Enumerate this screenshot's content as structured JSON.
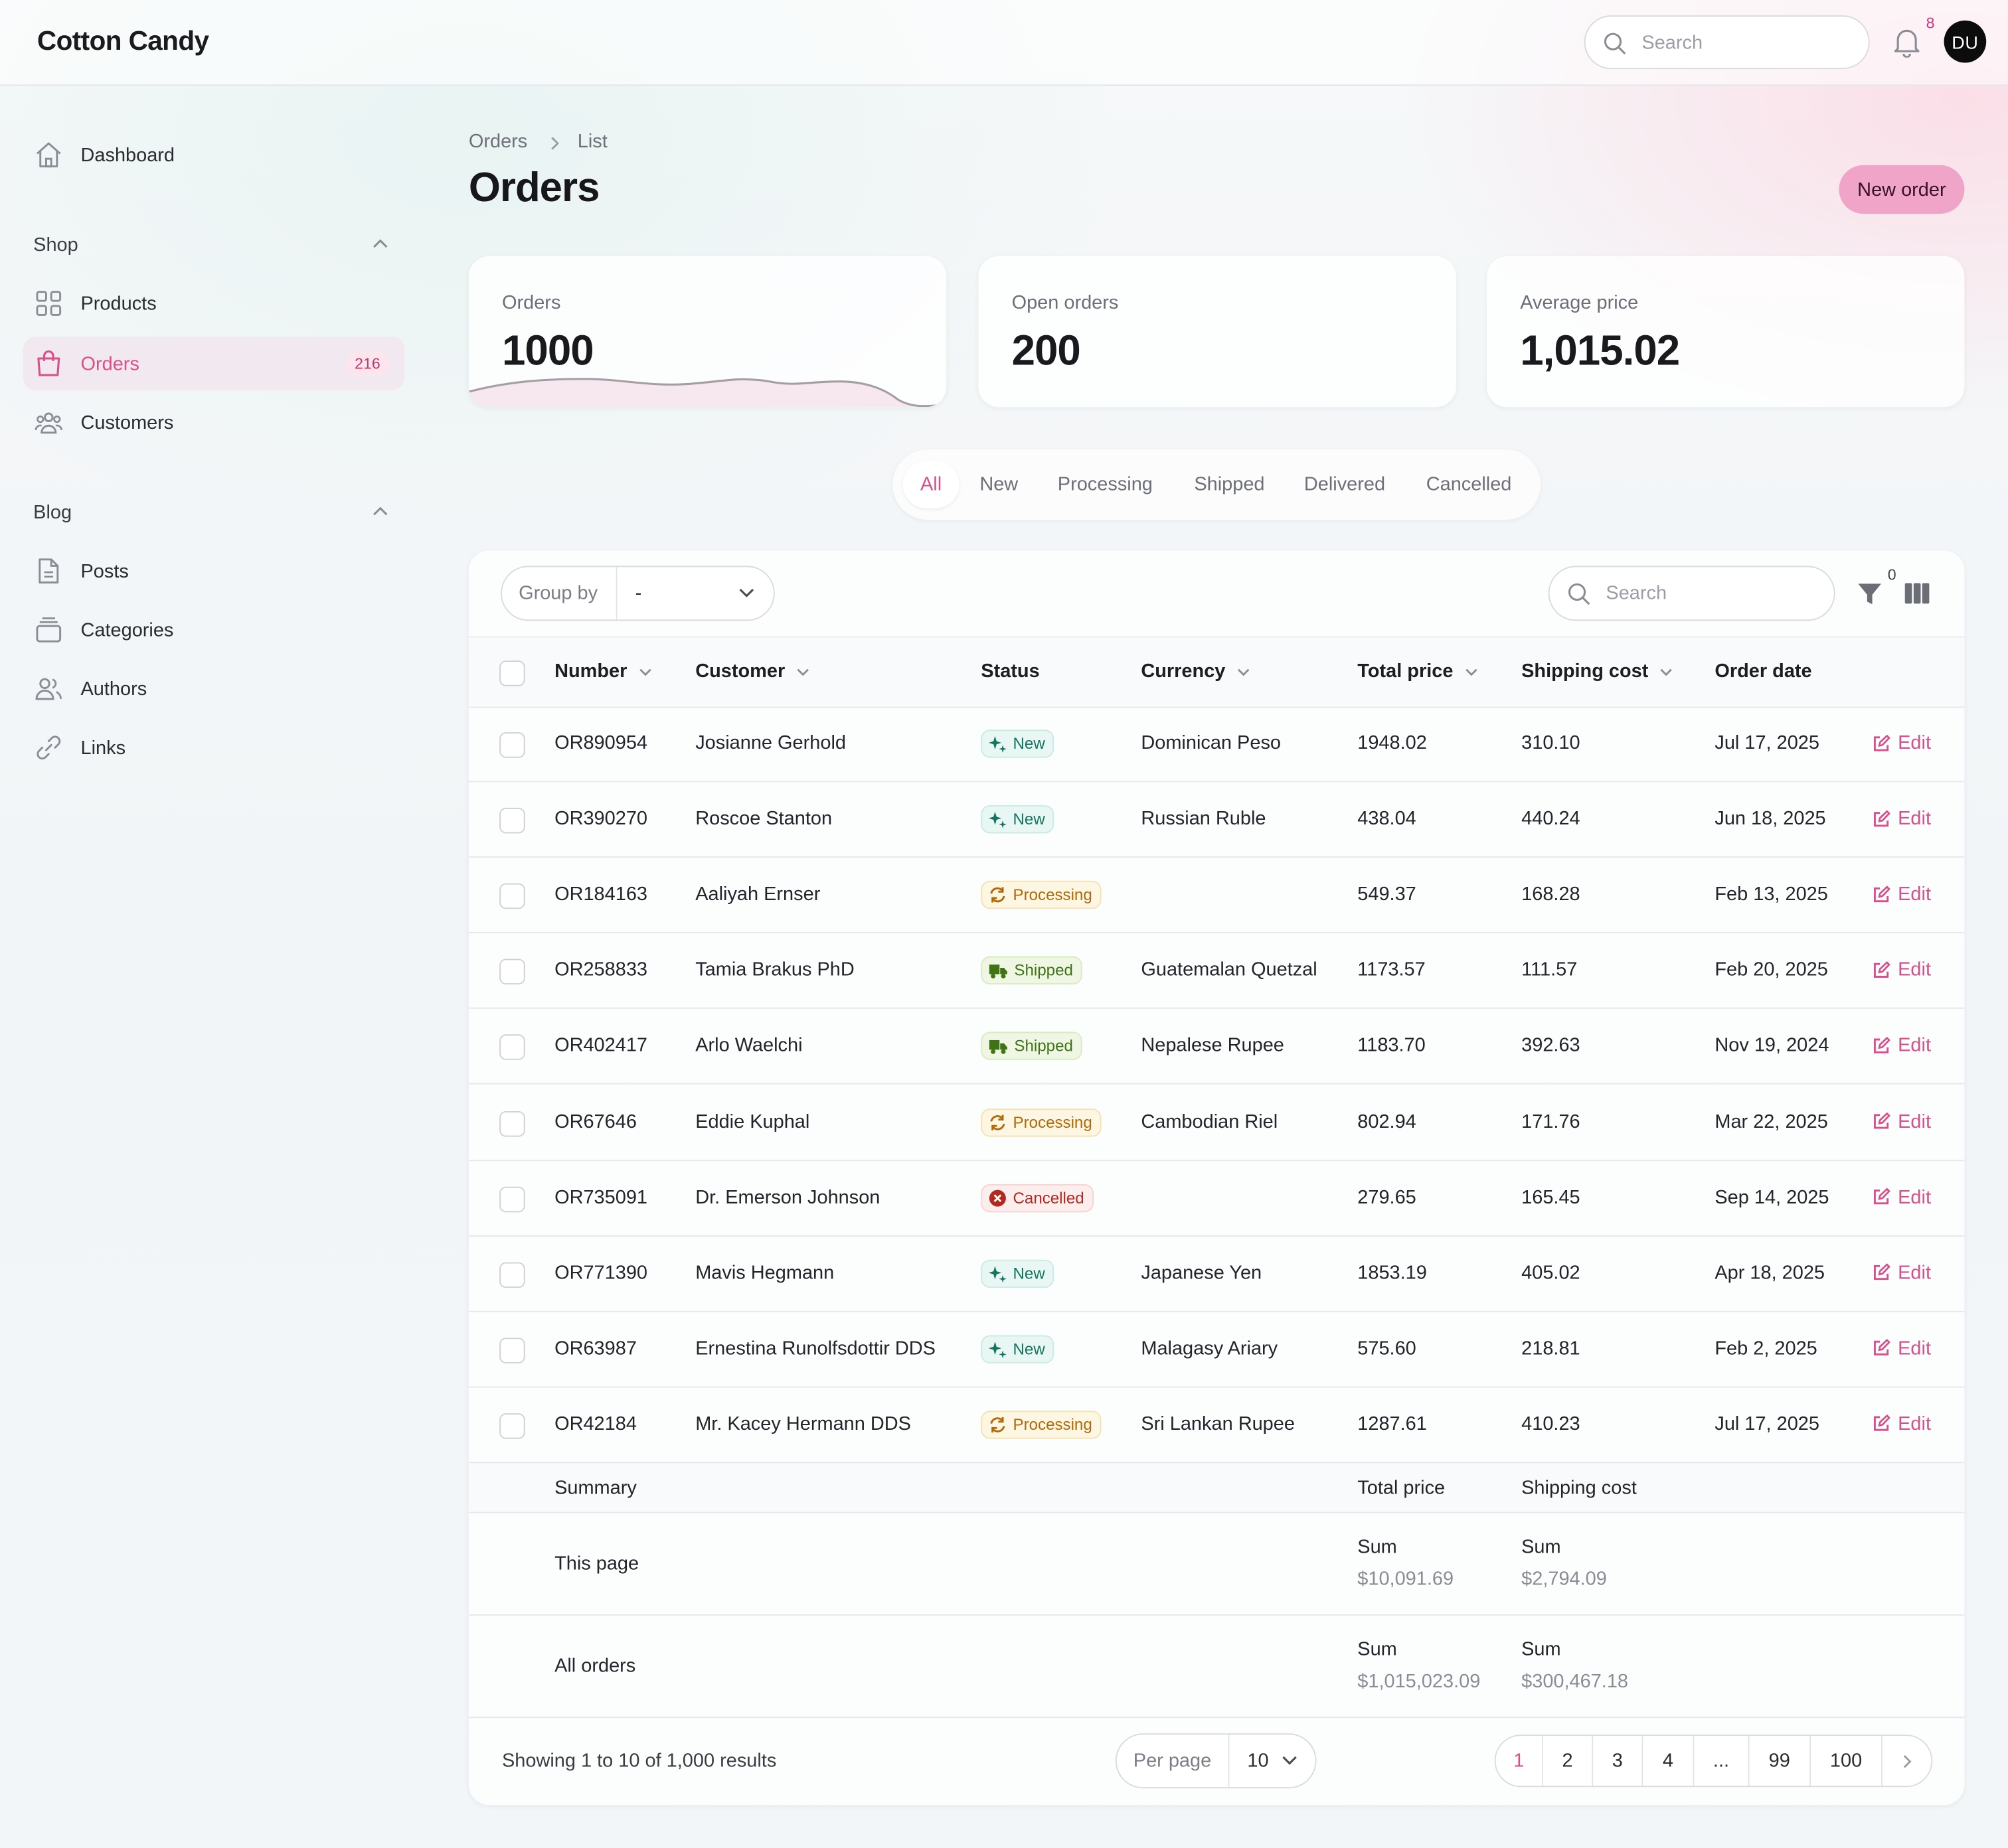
{
  "app": {
    "brand": "Cotton Candy"
  },
  "topbar": {
    "search_placeholder": "Search",
    "notification_count": "8",
    "avatar_initials": "DU"
  },
  "sidebar": {
    "dashboard": "Dashboard",
    "shop_group": "Shop",
    "products": "Products",
    "orders": "Orders",
    "orders_badge": "216",
    "customers": "Customers",
    "blog_group": "Blog",
    "posts": "Posts",
    "categories": "Categories",
    "authors": "Authors",
    "links": "Links"
  },
  "page": {
    "breadcrumb": [
      "Orders",
      "List"
    ],
    "title": "Orders",
    "new_button": "New order"
  },
  "stats": [
    {
      "label": "Orders",
      "value": "1000"
    },
    {
      "label": "Open orders",
      "value": "200"
    },
    {
      "label": "Average price",
      "value": "1,015.02"
    }
  ],
  "tabs": [
    "All",
    "New",
    "Processing",
    "Shipped",
    "Delivered",
    "Cancelled"
  ],
  "active_tab": "All",
  "table": {
    "group_by_label": "Group by",
    "group_by_value": "-",
    "search_placeholder": "Search",
    "filter_count": "0",
    "columns": [
      "Number",
      "Customer",
      "Status",
      "Currency",
      "Total price",
      "Shipping cost",
      "Order date"
    ],
    "edit_label": "Edit",
    "rows": [
      {
        "number": "OR890954",
        "customer": "Josianne Gerhold",
        "status": "New",
        "currency": "Dominican Peso",
        "total": "1948.02",
        "shipping": "310.10",
        "date": "Jul 17, 2025"
      },
      {
        "number": "OR390270",
        "customer": "Roscoe Stanton",
        "status": "New",
        "currency": "Russian Ruble",
        "total": "438.04",
        "shipping": "440.24",
        "date": "Jun 18, 2025"
      },
      {
        "number": "OR184163",
        "customer": "Aaliyah Ernser",
        "status": "Processing",
        "currency": "",
        "total": "549.37",
        "shipping": "168.28",
        "date": "Feb 13, 2025"
      },
      {
        "number": "OR258833",
        "customer": "Tamia Brakus PhD",
        "status": "Shipped",
        "currency": "Guatemalan Quetzal",
        "total": "1173.57",
        "shipping": "111.57",
        "date": "Feb 20, 2025"
      },
      {
        "number": "OR402417",
        "customer": "Arlo Waelchi",
        "status": "Shipped",
        "currency": "Nepalese Rupee",
        "total": "1183.70",
        "shipping": "392.63",
        "date": "Nov 19, 2024"
      },
      {
        "number": "OR67646",
        "customer": "Eddie Kuphal",
        "status": "Processing",
        "currency": "Cambodian Riel",
        "total": "802.94",
        "shipping": "171.76",
        "date": "Mar 22, 2025"
      },
      {
        "number": "OR735091",
        "customer": "Dr. Emerson Johnson",
        "status": "Cancelled",
        "currency": "",
        "total": "279.65",
        "shipping": "165.45",
        "date": "Sep 14, 2025"
      },
      {
        "number": "OR771390",
        "customer": "Mavis Hegmann",
        "status": "New",
        "currency": "Japanese Yen",
        "total": "1853.19",
        "shipping": "405.02",
        "date": "Apr 18, 2025"
      },
      {
        "number": "OR63987",
        "customer": "Ernestina Runolfsdottir DDS",
        "status": "New",
        "currency": "Malagasy Ariary",
        "total": "575.60",
        "shipping": "218.81",
        "date": "Feb 2, 2025"
      },
      {
        "number": "OR42184",
        "customer": "Mr. Kacey Hermann DDS",
        "status": "Processing",
        "currency": "Sri Lankan Rupee",
        "total": "1287.61",
        "shipping": "410.23",
        "date": "Jul 17, 2025"
      }
    ]
  },
  "summary": {
    "title": "Summary",
    "total_col": "Total price",
    "shipping_col": "Shipping cost",
    "this_page": {
      "label": "This page",
      "sum_label": "Sum",
      "total": "$10,091.69",
      "shipping": "$2,794.09"
    },
    "all_orders": {
      "label": "All orders",
      "sum_label": "Sum",
      "total": "$1,015,023.09",
      "shipping": "$300,467.18"
    }
  },
  "footer": {
    "showing": "Showing 1 to 10 of 1,000 results",
    "per_page_label": "Per page",
    "per_page_value": "10",
    "pages": [
      "1",
      "2",
      "3",
      "4",
      "...",
      "99",
      "100"
    ],
    "active_page": "1"
  },
  "colors": {
    "accent": "#d94f8c",
    "button": "#f0a4c7"
  }
}
